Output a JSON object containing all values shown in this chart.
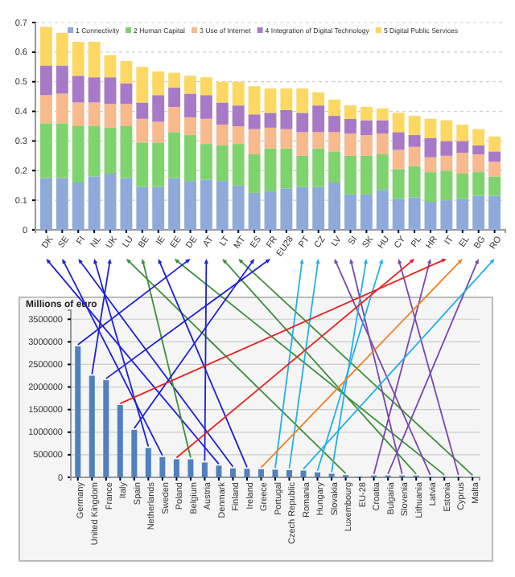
{
  "chart_data": [
    {
      "type": "bar",
      "stacked": true,
      "categories": [
        "DK",
        "SE",
        "FI",
        "NL",
        "UK",
        "LU",
        "BE",
        "IE",
        "EE",
        "DE",
        "AT",
        "LT",
        "MT",
        "ES",
        "FR",
        "EU28",
        "PT",
        "CZ",
        "LV",
        "SI",
        "SK",
        "HU",
        "CY",
        "PL",
        "HR",
        "IT",
        "EL",
        "BG",
        "RO"
      ],
      "series": [
        {
          "name": "1 Connectivity",
          "color": "#8eaadb",
          "values": [
            0.175,
            0.175,
            0.16,
            0.18,
            0.19,
            0.175,
            0.145,
            0.145,
            0.175,
            0.165,
            0.17,
            0.165,
            0.15,
            0.125,
            0.13,
            0.14,
            0.145,
            0.145,
            0.16,
            0.12,
            0.12,
            0.135,
            0.105,
            0.11,
            0.095,
            0.1,
            0.105,
            0.115,
            0.115
          ]
        },
        {
          "name": "2 Human Capital",
          "color": "#7fd36e",
          "values": [
            0.185,
            0.185,
            0.19,
            0.17,
            0.155,
            0.175,
            0.15,
            0.15,
            0.155,
            0.155,
            0.12,
            0.12,
            0.14,
            0.13,
            0.145,
            0.135,
            0.105,
            0.13,
            0.105,
            0.13,
            0.13,
            0.12,
            0.1,
            0.105,
            0.1,
            0.1,
            0.085,
            0.08,
            0.065
          ]
        },
        {
          "name": "3 Use of Internet",
          "color": "#f8b98c",
          "values": [
            0.095,
            0.1,
            0.08,
            0.08,
            0.08,
            0.075,
            0.08,
            0.07,
            0.085,
            0.06,
            0.085,
            0.07,
            0.06,
            0.085,
            0.07,
            0.065,
            0.08,
            0.055,
            0.065,
            0.075,
            0.07,
            0.07,
            0.065,
            0.065,
            0.05,
            0.05,
            0.07,
            0.06,
            0.05
          ]
        },
        {
          "name": "4 Integration of Digital Technology",
          "color": "#a779c7",
          "values": [
            0.1,
            0.095,
            0.09,
            0.085,
            0.09,
            0.07,
            0.055,
            0.09,
            0.065,
            0.08,
            0.08,
            0.075,
            0.07,
            0.05,
            0.05,
            0.065,
            0.065,
            0.09,
            0.055,
            0.05,
            0.05,
            0.045,
            0.06,
            0.04,
            0.065,
            0.05,
            0.04,
            0.03,
            0.035
          ]
        },
        {
          "name": "5 Digital Public Services",
          "color": "#fcd863",
          "values": [
            0.13,
            0.11,
            0.115,
            0.12,
            0.075,
            0.075,
            0.12,
            0.08,
            0.05,
            0.06,
            0.06,
            0.07,
            0.08,
            0.095,
            0.082,
            0.072,
            0.082,
            0.044,
            0.055,
            0.045,
            0.045,
            0.04,
            0.065,
            0.065,
            0.065,
            0.07,
            0.055,
            0.055,
            0.05
          ]
        }
      ],
      "ylim": [
        0,
        0.7
      ],
      "yticks": [
        0,
        0.1,
        0.2,
        0.3,
        0.4,
        0.5,
        0.6,
        0.7
      ],
      "grid": "y",
      "legend": "top"
    },
    {
      "type": "bar",
      "ylabel": "Millions of euro",
      "categories": [
        "Germany",
        "United Kingdom",
        "France",
        "Italy",
        "Spain",
        "Netherlands",
        "Sweden",
        "Poland",
        "Belgium",
        "Austria",
        "Denmark",
        "Finland",
        "Ireland",
        "Greece",
        "Portugal",
        "Czech Republic",
        "Romania",
        "Hungary",
        "Slovakia",
        "Luxembourg",
        "EU-28",
        "Croatia",
        "Bulgaria",
        "Slovenia",
        "Lithuania",
        "Latvia",
        "Estonia",
        "Cyprus",
        "Malta"
      ],
      "series": [
        {
          "color": "#4f81bd",
          "values": [
            2900000,
            2250000,
            2150000,
            1600000,
            1050000,
            650000,
            450000,
            400000,
            400000,
            330000,
            260000,
            200000,
            190000,
            180000,
            170000,
            160000,
            150000,
            110000,
            80000,
            50000,
            20000,
            40000,
            40000,
            40000,
            40000,
            20000,
            20000,
            20000,
            10000
          ]
        }
      ],
      "ylim": [
        0,
        3700000
      ],
      "yticks": [
        0,
        500000,
        1000000,
        1500000,
        2000000,
        2500000,
        3000000,
        3500000
      ],
      "grid": "y"
    }
  ]
}
